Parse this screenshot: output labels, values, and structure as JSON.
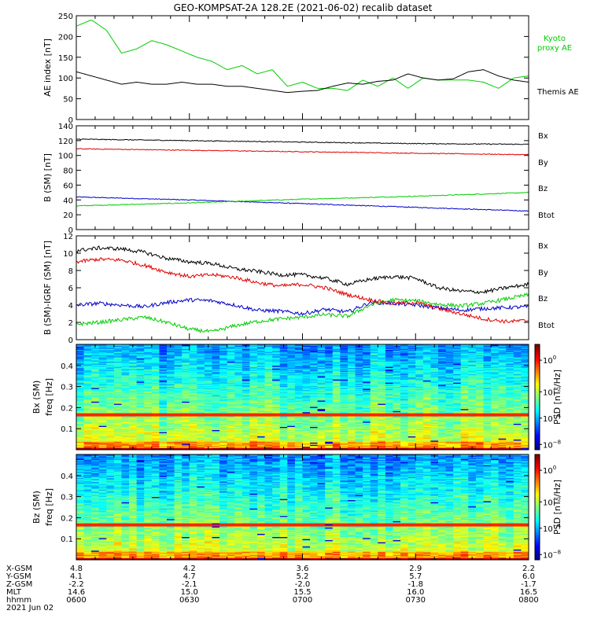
{
  "title": "GEO-KOMPSAT-2A 128.2E (2021-06-02) recalib dataset",
  "colors": {
    "black": "#000000",
    "red": "#e00000",
    "green": "#00cc00",
    "blue": "#0000cc"
  },
  "chart_data": [
    {
      "type": "line",
      "ylabel": "AE index [nT]",
      "ylim": [
        0,
        250
      ],
      "yticks": [
        "0",
        "50",
        "100",
        "150",
        "200",
        "250"
      ],
      "xlim": [
        0,
        120
      ],
      "x_units": "minutes after 0600 UT",
      "series": [
        {
          "name": "Kyoto proxy AE",
          "color": "#00cc00",
          "x": [
            0,
            4,
            8,
            12,
            16,
            20,
            24,
            28,
            32,
            36,
            40,
            44,
            48,
            52,
            56,
            60,
            64,
            68,
            72,
            76,
            80,
            84,
            88,
            92,
            96,
            100,
            104,
            108,
            112,
            116,
            120
          ],
          "y": [
            225,
            240,
            215,
            160,
            170,
            190,
            180,
            165,
            150,
            140,
            120,
            130,
            110,
            120,
            80,
            90,
            75,
            75,
            70,
            95,
            80,
            100,
            75,
            100,
            95,
            95,
            95,
            90,
            75,
            100,
            105
          ]
        },
        {
          "name": "Themis AE",
          "color": "#000000",
          "x": [
            0,
            4,
            8,
            12,
            16,
            20,
            24,
            28,
            32,
            36,
            40,
            44,
            48,
            52,
            56,
            60,
            64,
            68,
            72,
            76,
            80,
            84,
            88,
            92,
            96,
            100,
            104,
            108,
            112,
            116,
            120
          ],
          "y": [
            115,
            105,
            95,
            85,
            90,
            85,
            85,
            90,
            85,
            85,
            80,
            80,
            75,
            70,
            65,
            68,
            70,
            80,
            88,
            85,
            92,
            95,
            110,
            100,
            95,
            98,
            115,
            120,
            105,
            95,
            90
          ]
        }
      ],
      "legend_placement": "right"
    },
    {
      "type": "line",
      "ylabel": "B (SM) [nT]",
      "ylim": [
        0,
        140
      ],
      "yticks": [
        "0",
        "20",
        "40",
        "60",
        "80",
        "100",
        "120",
        "140"
      ],
      "xlim": [
        0,
        120
      ],
      "series": [
        {
          "name": "Bx",
          "color": "#0000cc",
          "x": [
            0,
            30,
            60,
            90,
            120
          ],
          "y": [
            44,
            40,
            35,
            30,
            25
          ]
        },
        {
          "name": "By",
          "color": "#00cc00",
          "x": [
            0,
            30,
            60,
            90,
            120
          ],
          "y": [
            32,
            36,
            41,
            45,
            50
          ]
        },
        {
          "name": "Bz",
          "color": "#e00000",
          "x": [
            0,
            30,
            60,
            90,
            120
          ],
          "y": [
            109,
            107,
            105,
            103,
            101
          ]
        },
        {
          "name": "Btot",
          "color": "#000000",
          "x": [
            0,
            30,
            60,
            90,
            120
          ],
          "y": [
            122,
            120,
            118,
            116,
            115
          ]
        }
      ],
      "legend_placement": "right"
    },
    {
      "type": "line",
      "ylabel": "B (SM)-IGRF (SM) [nT]",
      "ylim": [
        0,
        12
      ],
      "yticks": [
        "0",
        "2",
        "4",
        "6",
        "8",
        "10",
        "12"
      ],
      "xlim": [
        0,
        120
      ],
      "series": [
        {
          "name": "Bx",
          "color": "#0000cc",
          "x": [
            0,
            6,
            12,
            18,
            24,
            30,
            36,
            42,
            48,
            54,
            60,
            66,
            72,
            78,
            84,
            90,
            96,
            102,
            108,
            114,
            120
          ],
          "y": [
            4.0,
            4.2,
            4.0,
            3.8,
            4.3,
            4.6,
            4.5,
            4.0,
            3.4,
            3.3,
            3.0,
            3.5,
            3.2,
            4.3,
            4.2,
            4.0,
            3.7,
            3.4,
            3.6,
            3.7,
            3.8
          ]
        },
        {
          "name": "By",
          "color": "#00cc00",
          "x": [
            0,
            6,
            12,
            18,
            24,
            30,
            36,
            42,
            48,
            54,
            60,
            66,
            72,
            78,
            84,
            90,
            96,
            102,
            108,
            114,
            120
          ],
          "y": [
            1.8,
            2.0,
            2.3,
            2.6,
            2.0,
            1.2,
            0.9,
            1.6,
            2.1,
            2.4,
            2.6,
            2.9,
            2.7,
            4.0,
            4.6,
            4.5,
            4.1,
            3.9,
            4.2,
            4.7,
            5.2
          ]
        },
        {
          "name": "Bz",
          "color": "#e00000",
          "x": [
            0,
            6,
            12,
            18,
            24,
            30,
            36,
            42,
            48,
            54,
            60,
            66,
            72,
            78,
            84,
            90,
            96,
            102,
            108,
            114,
            120
          ],
          "y": [
            9.0,
            9.3,
            9.2,
            8.6,
            7.8,
            7.3,
            7.5,
            7.2,
            6.6,
            6.2,
            6.4,
            6.0,
            5.2,
            4.6,
            4.2,
            4.3,
            3.6,
            3.0,
            2.4,
            2.1,
            2.2
          ]
        },
        {
          "name": "Btot",
          "color": "#000000",
          "x": [
            0,
            6,
            12,
            18,
            24,
            30,
            36,
            42,
            48,
            54,
            60,
            66,
            72,
            78,
            84,
            90,
            96,
            102,
            108,
            114,
            120
          ],
          "y": [
            10.3,
            10.6,
            10.5,
            10.1,
            9.4,
            9.0,
            8.8,
            8.2,
            7.9,
            7.5,
            7.5,
            7.1,
            6.4,
            7.0,
            7.3,
            7.1,
            6.0,
            5.6,
            5.5,
            6.0,
            6.4
          ]
        }
      ],
      "legend_placement": "right"
    },
    {
      "type": "heatmap",
      "ylabel": "Bx (SM) freq [Hz]",
      "ylim": [
        0,
        0.5
      ],
      "yticks": [
        "0.1",
        "0.2",
        "0.3",
        "0.4"
      ],
      "ytick_values": [
        0.1,
        0.2,
        0.3,
        0.4
      ],
      "xlim": [
        0,
        120
      ],
      "colorbar_label": "PSD [nT²/Hz]",
      "colorbar_ticks": [
        {
          "base": "10",
          "exp": "0",
          "level": 0.85
        },
        {
          "base": "10",
          "exp": "−2",
          "level": 0.55
        },
        {
          "base": "10",
          "exp": "−4",
          "level": 0.3
        },
        {
          "base": "10",
          "exp": "−8",
          "level": 0.05
        }
      ]
    },
    {
      "type": "heatmap",
      "ylabel": "Bz (SM) freq [Hz]",
      "ylim": [
        0,
        0.5
      ],
      "yticks": [
        "0.1",
        "0.2",
        "0.3",
        "0.4"
      ],
      "ytick_values": [
        0.1,
        0.2,
        0.3,
        0.4
      ],
      "xlim": [
        0,
        120
      ],
      "colorbar_label": "PSD [nT²/Hz]",
      "colorbar_ticks": [
        {
          "base": "10",
          "exp": "0",
          "level": 0.85
        },
        {
          "base": "10",
          "exp": "−2",
          "level": 0.55
        },
        {
          "base": "10",
          "exp": "−4",
          "level": 0.3
        },
        {
          "base": "10",
          "exp": "−8",
          "level": 0.05
        }
      ]
    }
  ],
  "ephemeris": {
    "rows": [
      {
        "label": "X-GSM",
        "values": [
          "4.8",
          "4.2",
          "3.6",
          "2.9",
          "2.2"
        ]
      },
      {
        "label": "Y-GSM",
        "values": [
          "4.1",
          "4.7",
          "5.2",
          "5.7",
          "6.0"
        ]
      },
      {
        "label": "Z-GSM",
        "values": [
          "-2.2",
          "-2.1",
          "-2.0",
          "-1.8",
          "-1.7"
        ]
      },
      {
        "label": "MLT",
        "values": [
          "14.6",
          "15.0",
          "15.5",
          "16.0",
          "16.5"
        ]
      },
      {
        "label": "hhmm",
        "values": [
          "0600",
          "0630",
          "0700",
          "0730",
          "0800"
        ]
      }
    ],
    "date": "2021 Jun 02",
    "tick_minutes": [
      0,
      30,
      60,
      90,
      120
    ]
  }
}
